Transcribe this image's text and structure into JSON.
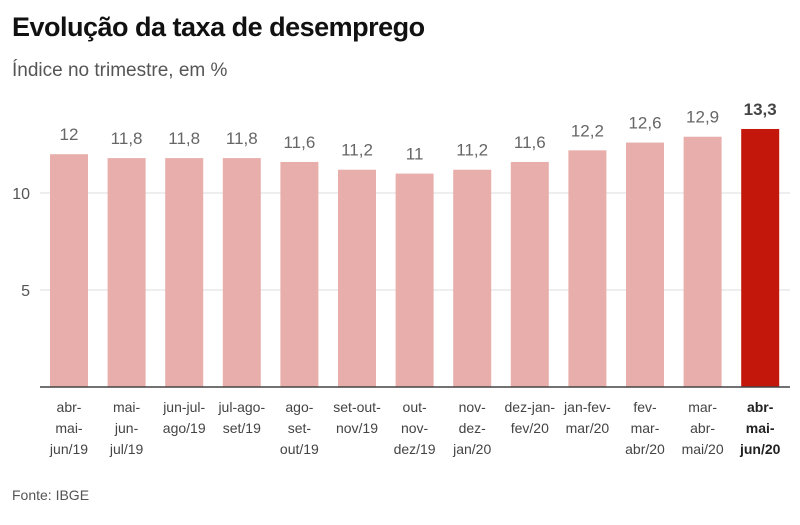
{
  "title": "Evolução da taxa de desemprego",
  "subtitle": "Índice no trimestre, em %",
  "source": "Fonte: IBGE",
  "chart_data": {
    "type": "bar",
    "categories": [
      [
        "abr-",
        "mai-",
        "jun/19"
      ],
      [
        "mai-",
        "jun-",
        "jul/19"
      ],
      [
        "jun-jul-",
        "ago/19"
      ],
      [
        "jul-ago-",
        "set/19"
      ],
      [
        "ago-",
        "set-",
        "out/19"
      ],
      [
        "set-out-",
        "nov/19"
      ],
      [
        "out-",
        "nov-",
        "dez/19"
      ],
      [
        "nov-",
        "dez-",
        "jan/20"
      ],
      [
        "dez-jan-",
        "fev/20"
      ],
      [
        "jan-fev-",
        "mar/20"
      ],
      [
        "fev-",
        "mar-",
        "abr/20"
      ],
      [
        "mar-",
        "abr-",
        "mai/20"
      ],
      [
        "abr-",
        "mai-",
        "jun/20"
      ]
    ],
    "values": [
      12,
      11.8,
      11.8,
      11.8,
      11.6,
      11.2,
      11,
      11.2,
      11.6,
      12.2,
      12.6,
      12.9,
      13.3
    ],
    "value_labels": [
      "12",
      "11,8",
      "11,8",
      "11,8",
      "11,6",
      "11,2",
      "11",
      "11,2",
      "11,6",
      "12,2",
      "12,6",
      "12,9",
      "13,3"
    ],
    "yticks": [
      5,
      10
    ],
    "ytick_labels": [
      "5",
      "10"
    ],
    "ylim": [
      0,
      13.3
    ],
    "grid": true,
    "highlight_index": 12,
    "colors": {
      "bar": "#e8aeab",
      "highlight": "#c4170c",
      "grid": "#dddddd",
      "axis": "#444444"
    }
  }
}
